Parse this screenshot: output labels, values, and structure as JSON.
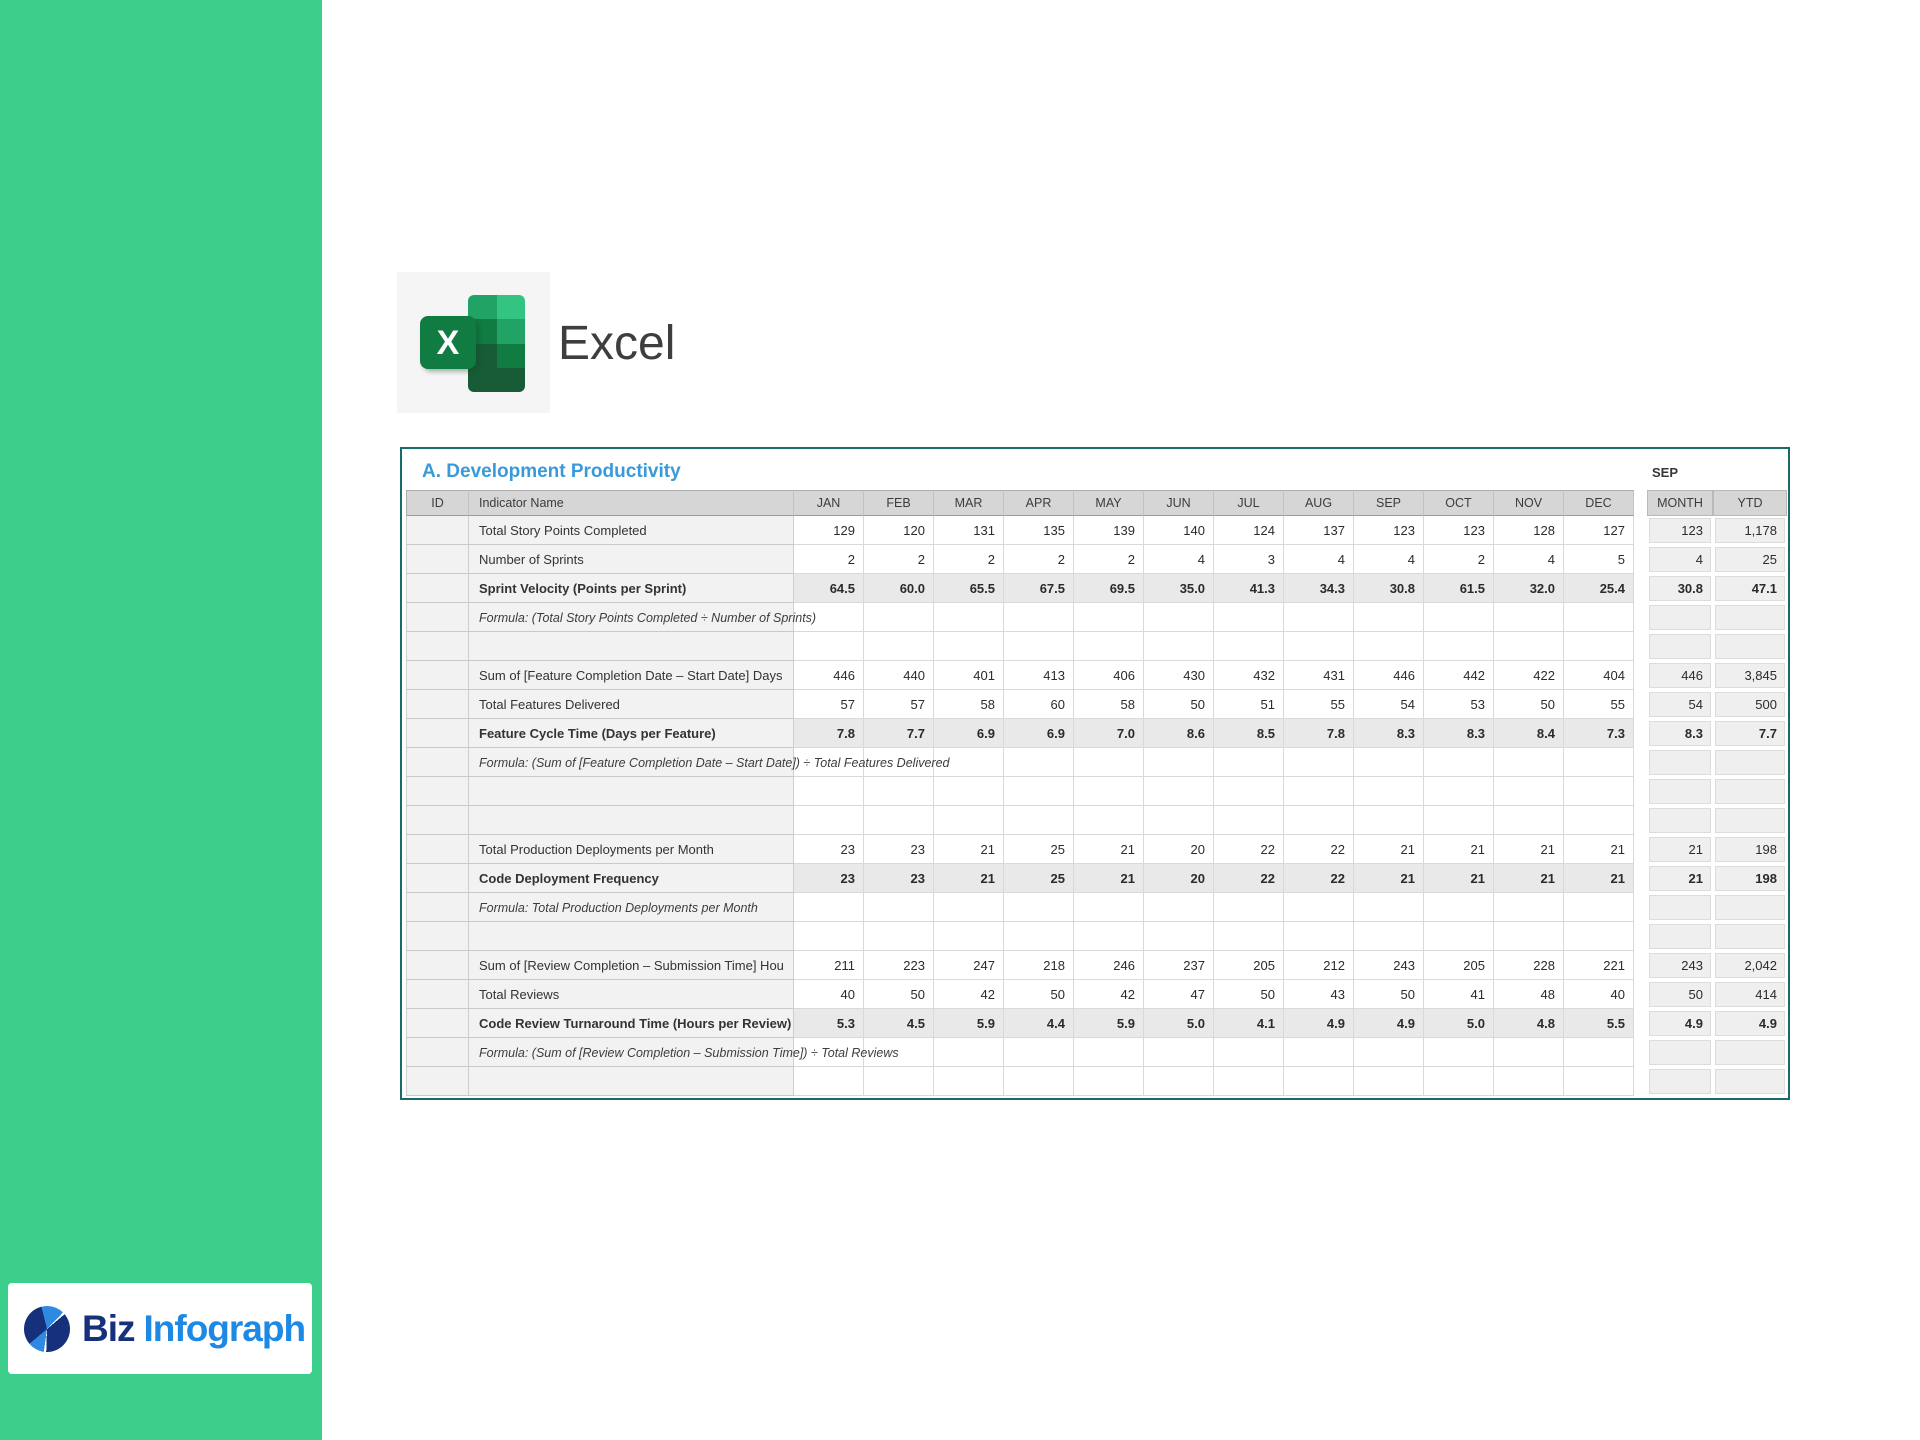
{
  "app": {
    "name": "Excel"
  },
  "colors": {
    "sidebar_green": "#3CCF8C",
    "panel_border_teal": "#1B6A6A",
    "title_blue": "#3A9AD9",
    "excel_green_front": "#107C41",
    "excel_green_dark": "#185C37",
    "excel_green_mid": "#21A366",
    "excel_green_light": "#33C481",
    "logo_navy": "#16307C",
    "logo_blue": "#1E88E5",
    "header_gray": "#D6D6D6",
    "cell_gray": "#F2F2F2",
    "agg_gray": "#EFEFEF"
  },
  "footer_logo": {
    "part1": "Biz",
    "part2": "Infograph",
    "icon": "pie-chart-icon"
  },
  "excel_icon": {
    "letter": "X"
  },
  "panel": {
    "title": "A. Development Productivity",
    "period_label": "SEP",
    "columns": {
      "id": "ID",
      "indicator": "Indicator Name",
      "months": [
        "JAN",
        "FEB",
        "MAR",
        "APR",
        "MAY",
        "JUN",
        "JUL",
        "AUG",
        "SEP",
        "OCT",
        "NOV",
        "DEC"
      ],
      "month": "MONTH",
      "ytd": "YTD"
    },
    "rows": [
      {
        "type": "data",
        "label": "Total Story Points Completed",
        "values": [
          "129",
          "120",
          "131",
          "135",
          "139",
          "140",
          "124",
          "137",
          "123",
          "123",
          "128",
          "127"
        ],
        "month": "123",
        "ytd": "1,178"
      },
      {
        "type": "data",
        "label": "Number of Sprints",
        "values": [
          "2",
          "2",
          "2",
          "2",
          "2",
          "4",
          "3",
          "4",
          "4",
          "2",
          "4",
          "5"
        ],
        "month": "4",
        "ytd": "25"
      },
      {
        "type": "calc",
        "label": "Sprint Velocity (Points per Sprint)",
        "values": [
          "64.5",
          "60.0",
          "65.5",
          "67.5",
          "69.5",
          "35.0",
          "41.3",
          "34.3",
          "30.8",
          "61.5",
          "32.0",
          "25.4"
        ],
        "month": "30.8",
        "ytd": "47.1"
      },
      {
        "type": "formula",
        "label": "Formula: (Total Story Points Completed ÷ Number of Sprints)"
      },
      {
        "type": "empty"
      },
      {
        "type": "data",
        "label": "Sum of [Feature Completion Date – Start Date] Days",
        "values": [
          "446",
          "440",
          "401",
          "413",
          "406",
          "430",
          "432",
          "431",
          "446",
          "442",
          "422",
          "404"
        ],
        "month": "446",
        "ytd": "3,845"
      },
      {
        "type": "data",
        "label": "Total Features Delivered",
        "values": [
          "57",
          "57",
          "58",
          "60",
          "58",
          "50",
          "51",
          "55",
          "54",
          "53",
          "50",
          "55"
        ],
        "month": "54",
        "ytd": "500"
      },
      {
        "type": "calc",
        "label": "Feature Cycle Time (Days per Feature)",
        "values": [
          "7.8",
          "7.7",
          "6.9",
          "6.9",
          "7.0",
          "8.6",
          "8.5",
          "7.8",
          "8.3",
          "8.3",
          "8.4",
          "7.3"
        ],
        "month": "8.3",
        "ytd": "7.7"
      },
      {
        "type": "formula",
        "label": "Formula: (Sum of [Feature Completion Date – Start Date]) ÷ Total Features Delivered"
      },
      {
        "type": "empty"
      },
      {
        "type": "empty"
      },
      {
        "type": "data",
        "label": "Total Production Deployments per Month",
        "values": [
          "23",
          "23",
          "21",
          "25",
          "21",
          "20",
          "22",
          "22",
          "21",
          "21",
          "21",
          "21"
        ],
        "month": "21",
        "ytd": "198"
      },
      {
        "type": "calc",
        "label": "Code Deployment Frequency",
        "values": [
          "23",
          "23",
          "21",
          "25",
          "21",
          "20",
          "22",
          "22",
          "21",
          "21",
          "21",
          "21"
        ],
        "month": "21",
        "ytd": "198"
      },
      {
        "type": "formula",
        "label": "Formula: Total Production Deployments per Month"
      },
      {
        "type": "empty"
      },
      {
        "type": "data",
        "label": "Sum of [Review Completion – Submission Time] Hou",
        "values": [
          "211",
          "223",
          "247",
          "218",
          "246",
          "237",
          "205",
          "212",
          "243",
          "205",
          "228",
          "221"
        ],
        "month": "243",
        "ytd": "2,042"
      },
      {
        "type": "data",
        "label": "Total Reviews",
        "values": [
          "40",
          "50",
          "42",
          "50",
          "42",
          "47",
          "50",
          "43",
          "50",
          "41",
          "48",
          "40"
        ],
        "month": "50",
        "ytd": "414"
      },
      {
        "type": "calc",
        "label": "Code Review Turnaround Time (Hours per Review)",
        "values": [
          "5.3",
          "4.5",
          "5.9",
          "4.4",
          "5.9",
          "5.0",
          "4.1",
          "4.9",
          "4.9",
          "5.0",
          "4.8",
          "5.5"
        ],
        "month": "4.9",
        "ytd": "4.9"
      },
      {
        "type": "formula",
        "label": "Formula: (Sum of [Review Completion – Submission Time]) ÷ Total Reviews"
      },
      {
        "type": "empty"
      }
    ]
  }
}
